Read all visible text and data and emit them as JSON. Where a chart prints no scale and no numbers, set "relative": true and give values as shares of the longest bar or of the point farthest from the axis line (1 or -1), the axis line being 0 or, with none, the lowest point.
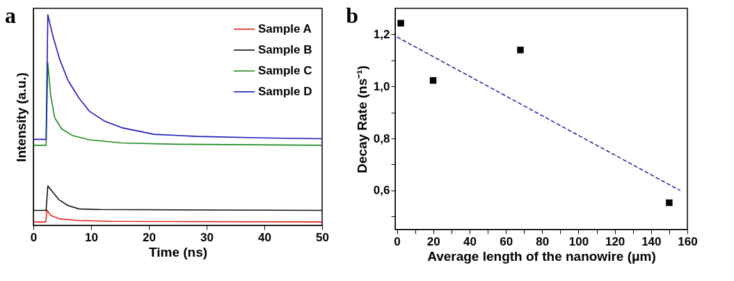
{
  "chart_data": [
    {
      "type": "line",
      "title": "a",
      "xlabel": "Time (ns)",
      "ylabel": "Intensity (a.u.)",
      "relative": true,
      "legend": "top right",
      "xlim": [
        0,
        50
      ],
      "xticks": [
        0,
        10,
        20,
        30,
        40,
        50
      ],
      "series": [
        {
          "name": "Sample A",
          "color": "#e02020",
          "x": [
            0,
            2.15,
            2.35,
            3.0,
            4.5,
            7.9,
            13.5,
            50
          ],
          "values": [
            0.016,
            0.016,
            0.073,
            0.047,
            0.031,
            0.023,
            0.019,
            0.016
          ]
        },
        {
          "name": "Sample B",
          "color": "#111111",
          "x": [
            0,
            2.2,
            2.5,
            3.4,
            4.5,
            6.0,
            7.9,
            11.6,
            50
          ],
          "values": [
            0.071,
            0.071,
            0.1875,
            0.156,
            0.12,
            0.094,
            0.078,
            0.075,
            0.071
          ]
        },
        {
          "name": "Sample C",
          "color": "#1f8a1f",
          "x": [
            0,
            2.2,
            2.5,
            3.0,
            3.7,
            4.9,
            6.7,
            9.7,
            15.3,
            24.7,
            50
          ],
          "values": [
            0.38,
            0.38,
            0.771,
            0.615,
            0.51,
            0.458,
            0.427,
            0.406,
            0.391,
            0.385,
            0.38
          ]
        },
        {
          "name": "Sample D",
          "color": "#1a1ab8",
          "x": [
            0,
            2.2,
            2.5,
            3.4,
            4.5,
            6.0,
            7.9,
            9.7,
            12.3,
            15.3,
            20.9,
            28.4,
            39.6,
            50
          ],
          "values": [
            0.408,
            0.408,
            1,
            0.896,
            0.792,
            0.6875,
            0.604,
            0.5417,
            0.495,
            0.4635,
            0.432,
            0.422,
            0.415,
            0.411
          ]
        }
      ]
    },
    {
      "type": "scatter",
      "title": "b",
      "xlabel": "Average length of the nanowire (μm)",
      "ylabel": "Decay Rate (ns⁻¹)",
      "xlim": [
        -1,
        160
      ],
      "ylim": [
        0.45,
        1.3
      ],
      "xticks": [
        0,
        {
          "value": 10,
          "label": null
        },
        20,
        {
          "value": 30,
          "label": null
        },
        40,
        {
          "value": 50,
          "label": null
        },
        60,
        {
          "value": 70,
          "label": null
        },
        80,
        {
          "value": 90,
          "label": null
        },
        100,
        {
          "value": 110,
          "label": null
        },
        120,
        {
          "value": 130,
          "label": null
        },
        140,
        {
          "value": 150,
          "label": null
        },
        160
      ],
      "yticks": [
        {
          "value": 0.5,
          "label": null
        },
        {
          "value": 0.6,
          "label": "0,6"
        },
        {
          "value": 0.7,
          "label": null
        },
        {
          "value": 0.8,
          "label": "0,8"
        },
        {
          "value": 0.9,
          "label": null
        },
        {
          "value": 1.0,
          "label": "1,0"
        },
        {
          "value": 1.1,
          "label": null
        },
        {
          "value": 1.2,
          "label": "1,2"
        }
      ],
      "series": [
        {
          "color": "#000000",
          "marker": "square",
          "x": [
            2.1,
            19.9,
            68,
            150
          ],
          "values": [
            1.243,
            1.023,
            1.14,
            0.553
          ]
        },
        {
          "type": "line",
          "color": "#2a2aa8",
          "line_style": "dashed",
          "marker": "none",
          "x": [
            0,
            156
          ],
          "values": [
            1.19,
            0.6
          ]
        }
      ]
    }
  ]
}
